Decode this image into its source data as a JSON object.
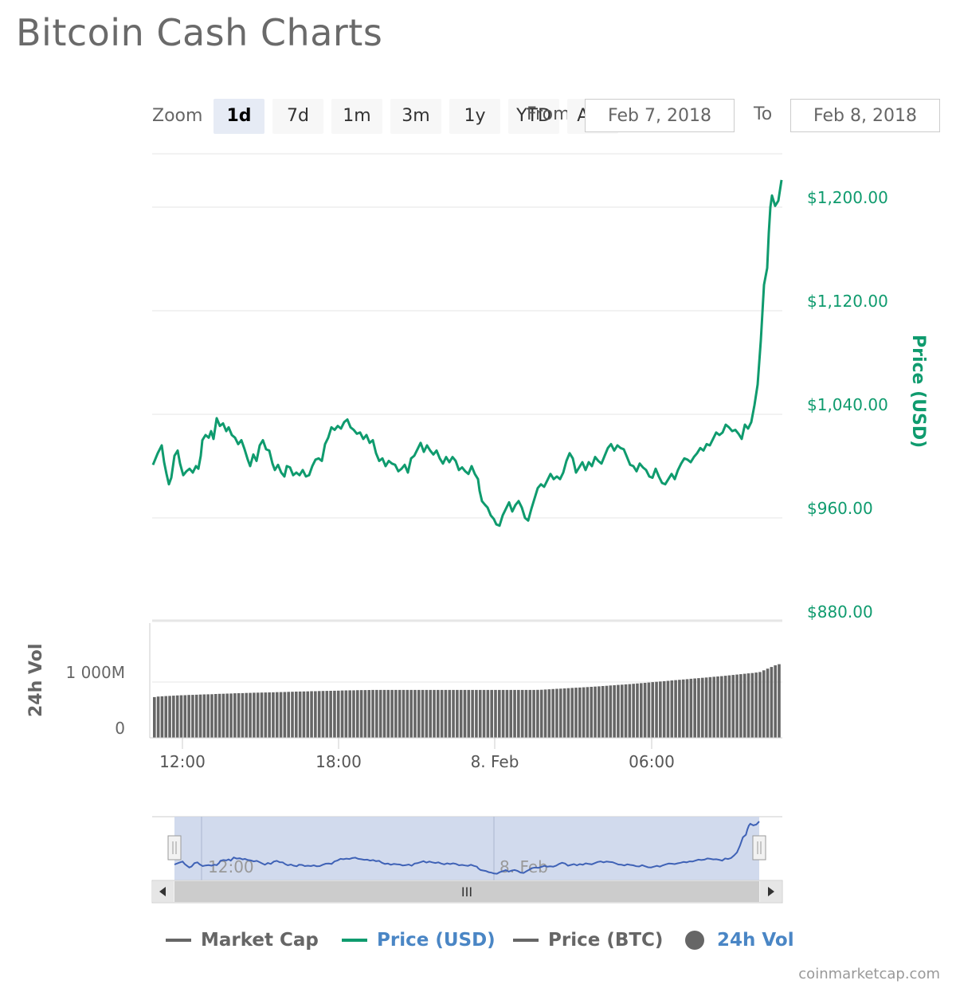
{
  "title": "Bitcoin Cash Charts",
  "toolbar": {
    "zoom_label": "Zoom",
    "zoom_buttons": [
      "1d",
      "7d",
      "1m",
      "3m",
      "1y",
      "YTD",
      "ALL"
    ],
    "active_zoom": "1d",
    "from_label": "From",
    "from_value": "Feb 7, 2018",
    "to_label": "To",
    "to_value": "Feb 8, 2018"
  },
  "legend": {
    "market_cap": "Market Cap",
    "price_usd": "Price (USD)",
    "price_btc": "Price (BTC)",
    "vol_24h": "24h Vol"
  },
  "credit": "coinmarketcap.com",
  "navigator": {
    "labels": [
      "12:00",
      "8. Feb"
    ],
    "scroll_grip": "III"
  },
  "colors": {
    "price_usd": "#0f9b6e",
    "volume": "#666666",
    "legend_grey": "#666666",
    "legend_blue": "#4a86c5",
    "navigator_fill": "#ccd6eb",
    "navigator_line": "#3f62b6"
  },
  "chart_data": [
    {
      "type": "line",
      "series": [
        {
          "name": "Price (USD)"
        }
      ],
      "ylabel": "Price (USD)",
      "ylim": [
        880,
        1240
      ],
      "ytick_labels": [
        "$880.00",
        "$960.00",
        "$1,040.00",
        "$1,120.00",
        "$1,200.00"
      ],
      "x_tick_labels": [
        "12:00",
        "18:00",
        "8. Feb",
        "06:00"
      ],
      "points": [
        [
          0,
          1001
        ],
        [
          6,
          1010
        ],
        [
          11,
          1016
        ],
        [
          14,
          1003
        ],
        [
          17,
          994
        ],
        [
          20,
          986
        ],
        [
          23,
          991
        ],
        [
          27,
          1008
        ],
        [
          31,
          1012
        ],
        [
          34,
          1002
        ],
        [
          38,
          993
        ],
        [
          42,
          996
        ],
        [
          46,
          998
        ],
        [
          50,
          995
        ],
        [
          54,
          1000
        ],
        [
          57,
          998
        ],
        [
          60,
          1008
        ],
        [
          62,
          1020
        ],
        [
          66,
          1024
        ],
        [
          70,
          1022
        ],
        [
          73,
          1027
        ],
        [
          76,
          1021
        ],
        [
          80,
          1037
        ],
        [
          84,
          1031
        ],
        [
          88,
          1033
        ],
        [
          92,
          1027
        ],
        [
          95,
          1030
        ],
        [
          99,
          1024
        ],
        [
          103,
          1022
        ],
        [
          107,
          1017
        ],
        [
          111,
          1020
        ],
        [
          115,
          1013
        ],
        [
          119,
          1005
        ],
        [
          122,
          1000
        ],
        [
          126,
          1009
        ],
        [
          130,
          1004
        ],
        [
          134,
          1016
        ],
        [
          138,
          1020
        ],
        [
          142,
          1013
        ],
        [
          146,
          1012
        ],
        [
          150,
          1002
        ],
        [
          153,
          997
        ],
        [
          157,
          1001
        ],
        [
          161,
          995
        ],
        [
          165,
          992
        ],
        [
          168,
          1000
        ],
        [
          172,
          999
        ],
        [
          176,
          993
        ],
        [
          180,
          995
        ],
        [
          184,
          993
        ],
        [
          188,
          997
        ],
        [
          192,
          992
        ],
        [
          196,
          993
        ],
        [
          200,
          1000
        ],
        [
          204,
          1005
        ],
        [
          208,
          1006
        ],
        [
          212,
          1004
        ],
        [
          216,
          1017
        ],
        [
          220,
          1022
        ],
        [
          224,
          1030
        ],
        [
          228,
          1028
        ],
        [
          232,
          1031
        ],
        [
          236,
          1029
        ],
        [
          240,
          1034
        ],
        [
          244,
          1036
        ],
        [
          248,
          1030
        ],
        [
          252,
          1028
        ],
        [
          256,
          1025
        ],
        [
          260,
          1026
        ],
        [
          264,
          1021
        ],
        [
          268,
          1024
        ],
        [
          272,
          1018
        ],
        [
          276,
          1020
        ],
        [
          280,
          1010
        ],
        [
          284,
          1004
        ],
        [
          288,
          1006
        ],
        [
          292,
          1000
        ],
        [
          296,
          1004
        ],
        [
          300,
          1002
        ],
        [
          304,
          1001
        ],
        [
          308,
          996
        ],
        [
          312,
          998
        ],
        [
          316,
          1001
        ],
        [
          320,
          995
        ],
        [
          324,
          1006
        ],
        [
          328,
          1008
        ],
        [
          332,
          1013
        ],
        [
          336,
          1018
        ],
        [
          340,
          1011
        ],
        [
          344,
          1016
        ],
        [
          348,
          1012
        ],
        [
          352,
          1009
        ],
        [
          356,
          1012
        ],
        [
          360,
          1006
        ],
        [
          364,
          1002
        ],
        [
          368,
          1007
        ],
        [
          372,
          1003
        ],
        [
          376,
          1007
        ],
        [
          380,
          1004
        ],
        [
          384,
          997
        ],
        [
          388,
          999
        ],
        [
          392,
          996
        ],
        [
          396,
          994
        ],
        [
          400,
          1000
        ],
        [
          404,
          994
        ],
        [
          408,
          990
        ],
        [
          410,
          981
        ],
        [
          413,
          973
        ],
        [
          417,
          970
        ],
        [
          420,
          968
        ],
        [
          424,
          962
        ],
        [
          428,
          959
        ],
        [
          431,
          955
        ],
        [
          435,
          954
        ],
        [
          439,
          962
        ],
        [
          443,
          967
        ],
        [
          447,
          972
        ],
        [
          451,
          965
        ],
        [
          455,
          970
        ],
        [
          459,
          973
        ],
        [
          463,
          968
        ],
        [
          467,
          960
        ],
        [
          471,
          958
        ],
        [
          475,
          967
        ],
        [
          479,
          975
        ],
        [
          483,
          983
        ],
        [
          487,
          986
        ],
        [
          491,
          984
        ],
        [
          495,
          989
        ],
        [
          499,
          994
        ],
        [
          503,
          990
        ],
        [
          507,
          992
        ],
        [
          511,
          990
        ],
        [
          515,
          995
        ],
        [
          519,
          1004
        ],
        [
          523,
          1010
        ],
        [
          527,
          1006
        ],
        [
          531,
          995
        ],
        [
          535,
          999
        ],
        [
          539,
          1003
        ],
        [
          543,
          997
        ],
        [
          547,
          1003
        ],
        [
          551,
          1000
        ],
        [
          555,
          1007
        ],
        [
          559,
          1004
        ],
        [
          563,
          1002
        ],
        [
          567,
          1008
        ],
        [
          571,
          1014
        ],
        [
          575,
          1017
        ],
        [
          579,
          1012
        ],
        [
          583,
          1016
        ],
        [
          587,
          1014
        ],
        [
          591,
          1013
        ],
        [
          595,
          1007
        ],
        [
          599,
          1001
        ],
        [
          603,
          1000
        ],
        [
          607,
          996
        ],
        [
          611,
          1002
        ],
        [
          615,
          999
        ],
        [
          619,
          997
        ],
        [
          623,
          992
        ],
        [
          627,
          991
        ],
        [
          631,
          998
        ],
        [
          635,
          992
        ],
        [
          639,
          987
        ],
        [
          643,
          986
        ],
        [
          647,
          990
        ],
        [
          651,
          994
        ],
        [
          655,
          990
        ],
        [
          659,
          997
        ],
        [
          663,
          1002
        ],
        [
          667,
          1006
        ],
        [
          671,
          1005
        ],
        [
          675,
          1003
        ],
        [
          679,
          1007
        ],
        [
          683,
          1010
        ],
        [
          687,
          1014
        ],
        [
          691,
          1012
        ],
        [
          695,
          1017
        ],
        [
          699,
          1016
        ],
        [
          703,
          1021
        ],
        [
          707,
          1026
        ],
        [
          711,
          1024
        ],
        [
          715,
          1026
        ],
        [
          719,
          1032
        ],
        [
          723,
          1030
        ],
        [
          727,
          1027
        ],
        [
          731,
          1028
        ],
        [
          735,
          1025
        ],
        [
          739,
          1021
        ],
        [
          743,
          1032
        ],
        [
          747,
          1029
        ],
        [
          751,
          1034
        ],
        [
          755,
          1047
        ],
        [
          759,
          1063
        ],
        [
          763,
          1097
        ],
        [
          767,
          1140
        ],
        [
          771,
          1153
        ],
        [
          773,
          1180
        ],
        [
          775,
          1200
        ],
        [
          777,
          1209
        ],
        [
          781,
          1201
        ],
        [
          785,
          1205
        ],
        [
          789,
          1221
        ]
      ]
    },
    {
      "type": "bar",
      "series": [
        {
          "name": "24h Vol"
        }
      ],
      "ylabel": "24h Vol",
      "ytick_labels": [
        "0",
        "1 000M"
      ],
      "x_tick_labels": [
        "12:00",
        "18:00",
        "8. Feb",
        "06:00"
      ],
      "values_M": [
        730,
        740,
        745,
        748,
        752,
        755,
        760,
        763,
        765,
        768,
        770,
        773,
        776,
        778,
        780,
        782,
        785,
        788,
        790,
        793,
        795,
        798,
        800,
        802,
        804,
        806,
        808,
        810,
        812,
        813,
        815,
        816,
        818,
        820,
        822,
        824,
        826,
        828,
        830,
        832,
        833,
        835,
        836,
        838,
        840,
        842,
        843,
        845,
        846,
        848,
        850,
        851,
        852,
        854,
        855,
        856,
        857,
        858,
        858,
        858,
        858,
        858,
        858,
        858,
        858,
        858,
        858,
        858,
        858,
        858,
        858,
        858,
        858,
        858,
        858,
        858,
        858,
        858,
        858,
        858,
        858,
        858,
        858,
        858,
        858,
        858,
        858,
        858,
        858,
        858,
        858,
        858,
        858,
        858,
        858,
        858,
        858,
        858,
        858,
        858,
        860,
        862,
        866,
        870,
        874,
        878,
        882,
        886,
        890,
        894,
        898,
        902,
        906,
        910,
        914,
        918,
        923,
        928,
        933,
        938,
        943,
        948,
        953,
        958,
        963,
        968,
        974,
        980,
        986,
        992,
        998,
        1004,
        1010,
        1016,
        1022,
        1028,
        1034,
        1040,
        1046,
        1052,
        1058,
        1064,
        1070,
        1076,
        1082,
        1088,
        1094,
        1100,
        1106,
        1113,
        1120,
        1127,
        1134,
        1141,
        1148,
        1155,
        1162,
        1170,
        1180,
        1210,
        1240,
        1270,
        1300,
        1320
      ]
    }
  ]
}
